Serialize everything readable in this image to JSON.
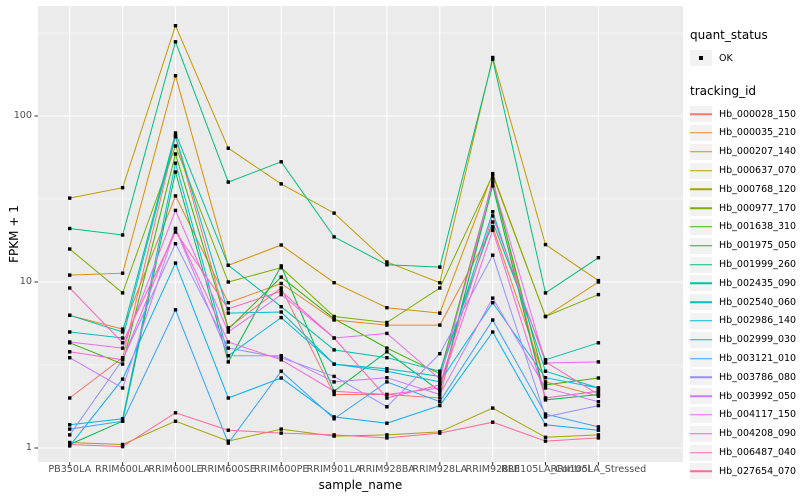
{
  "chart_data": {
    "type": "line",
    "title": "",
    "xlabel": "sample_name",
    "ylabel": "FPKM + 1",
    "x_categories": [
      "PB350LA",
      "RRIM600LA",
      "RRIM600LE",
      "RRIM600SE",
      "RRIM600PE",
      "RRIM901LA",
      "RRIM928BA",
      "RRIM928LA",
      "RRIM928LE",
      "RRII105LA_Control",
      "RRII105LA_Stressed"
    ],
    "y_axis": {
      "scale": "log10",
      "major_ticks": [
        1,
        10,
        100
      ],
      "tick_labels": [
        "1",
        "10",
        "100"
      ],
      "minor_ticks": [
        3.162,
        31.62,
        316.2
      ],
      "range_top": 460,
      "range_bottom": 0.82
    },
    "legend": {
      "quant_status": {
        "title": "quant_status",
        "items": [
          {
            "label": "OK",
            "symbol": "black-point"
          }
        ]
      },
      "tracking_id": {
        "title": "tracking_id"
      }
    },
    "style": {
      "panel_bg": "#EBEBEB",
      "grid_color": "#FFFFFF",
      "point_color": "#000000",
      "tick_color": "#333333",
      "tick_label_color": "#4D4D4D",
      "legend_key_bg": "#F2F2F2"
    },
    "series": [
      {
        "tracking_id": "Hb_000028_150",
        "color": "#F8766D",
        "values": [
          2.0,
          3.5,
          75,
          5.3,
          9.2,
          2.1,
          2.1,
          2.0,
          42,
          2.0,
          2.2
        ]
      },
      {
        "tracking_id": "Hb_000035_210",
        "color": "#EA8331",
        "values": [
          6.3,
          5.2,
          33,
          7.5,
          9.8,
          5.9,
          5.5,
          5.5,
          21.5,
          2.5,
          2.05
        ]
      },
      {
        "tracking_id": "Hb_000207_140",
        "color": "#D89000",
        "values": [
          11,
          11.3,
          175,
          12.6,
          16.7,
          9.9,
          7.0,
          6.5,
          45,
          6.2,
          10
        ]
      },
      {
        "tracking_id": "Hb_000637_070",
        "color": "#C09B00",
        "values": [
          32,
          37,
          350,
          64,
          39,
          26,
          13.2,
          9.9,
          225,
          16.8,
          10.2
        ]
      },
      {
        "tracking_id": "Hb_000768_120",
        "color": "#A3A500",
        "values": [
          1.08,
          1.05,
          1.45,
          1.1,
          1.3,
          1.18,
          1.2,
          1.25,
          1.74,
          1.16,
          1.2
        ]
      },
      {
        "tracking_id": "Hb_000977_170",
        "color": "#7CAE00",
        "values": [
          15.8,
          8.6,
          66,
          10,
          12.2,
          6.2,
          5.7,
          9.2,
          44,
          6.2,
          8.4
        ]
      },
      {
        "tracking_id": "Hb_001638_310",
        "color": "#39B600",
        "values": [
          4.3,
          3.2,
          59,
          5.2,
          10.7,
          6.0,
          4.0,
          2.8,
          40,
          2.4,
          2.64
        ]
      },
      {
        "tracking_id": "Hb_001975_050",
        "color": "#00BB4E",
        "values": [
          1.05,
          1.45,
          46,
          3.3,
          12.5,
          2.2,
          3.8,
          2.2,
          38,
          1.95,
          2.1
        ]
      },
      {
        "tracking_id": "Hb_001999_260",
        "color": "#00BF7D",
        "values": [
          21,
          19.2,
          280,
          40,
          53,
          18.7,
          12.7,
          12.3,
          220,
          8.6,
          14
        ]
      },
      {
        "tracking_id": "Hb_002435_090",
        "color": "#00C1A3",
        "values": [
          6.3,
          5.0,
          79,
          12.6,
          7.1,
          3.9,
          3.5,
          2.9,
          23,
          3.4,
          4.3
        ]
      },
      {
        "tracking_id": "Hb_002540_060",
        "color": "#00BFC4",
        "values": [
          5.0,
          4.6,
          76,
          6.5,
          6.6,
          3.2,
          3.0,
          2.7,
          26.5,
          2.9,
          2.3
        ]
      },
      {
        "tracking_id": "Hb_002986_140",
        "color": "#00BAE0",
        "values": [
          1.38,
          1.5,
          52,
          3.6,
          6.1,
          3.2,
          2.9,
          2.5,
          7.5,
          2.65,
          2.3
        ]
      },
      {
        "tracking_id": "Hb_002999_030",
        "color": "#00B0F6",
        "values": [
          1.03,
          2.6,
          13,
          2.0,
          2.64,
          1.54,
          1.41,
          1.8,
          5.0,
          1.38,
          1.28
        ]
      },
      {
        "tracking_id": "Hb_003121_010",
        "color": "#35A2FF",
        "values": [
          1.3,
          1.45,
          6.8,
          1.07,
          2.9,
          1.5,
          2.5,
          1.9,
          5.9,
          1.6,
          1.34
        ]
      },
      {
        "tracking_id": "Hb_003786_080",
        "color": "#9590FF",
        "values": [
          1.2,
          3.4,
          17,
          4.0,
          3.5,
          2.7,
          1.77,
          3.7,
          14.5,
          1.54,
          1.8
        ]
      },
      {
        "tracking_id": "Hb_003992_050",
        "color": "#C77CFF",
        "values": [
          3.5,
          2.3,
          21,
          3.6,
          3.6,
          2.5,
          2.65,
          2.1,
          8.0,
          2.3,
          1.9
        ]
      },
      {
        "tracking_id": "Hb_004117_150",
        "color": "#E76BF3",
        "values": [
          4.35,
          4.0,
          27,
          5.0,
          8.4,
          4.6,
          4.9,
          2.6,
          40,
          3.25,
          3.3
        ]
      },
      {
        "tracking_id": "Hb_004208_090",
        "color": "#FA62DB",
        "values": [
          3.8,
          3.4,
          21,
          4.35,
          3.4,
          2.2,
          2.1,
          2.3,
          20.5,
          2.0,
          2.2
        ]
      },
      {
        "tracking_id": "Hb_006487_040",
        "color": "#FF62BC",
        "values": [
          9.2,
          4.3,
          20,
          6.9,
          8.8,
          4.6,
          2.0,
          2.4,
          25,
          3.3,
          2.1
        ]
      },
      {
        "tracking_id": "Hb_027654_070",
        "color": "#FF6A98",
        "values": [
          1.05,
          1.02,
          1.63,
          1.28,
          1.23,
          1.2,
          1.15,
          1.23,
          1.43,
          1.1,
          1.15
        ]
      }
    ]
  }
}
